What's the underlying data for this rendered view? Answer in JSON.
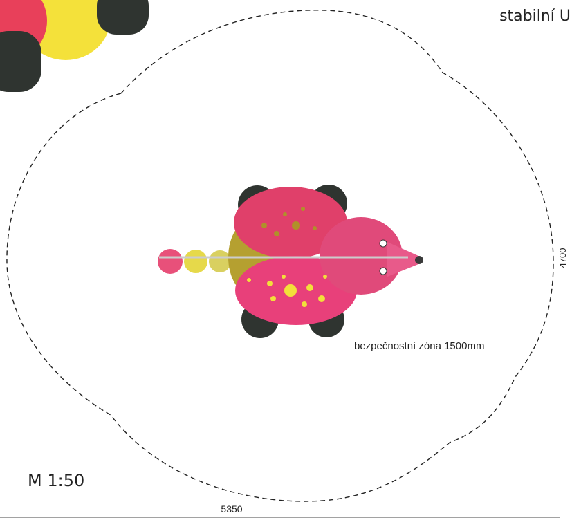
{
  "header": {
    "title": "stabilní U"
  },
  "dimensions": {
    "height": 4700,
    "width": 5350
  },
  "labels": {
    "zone": "bezpečnostní zóna 1500mm",
    "scale": "M 1:50"
  }
}
